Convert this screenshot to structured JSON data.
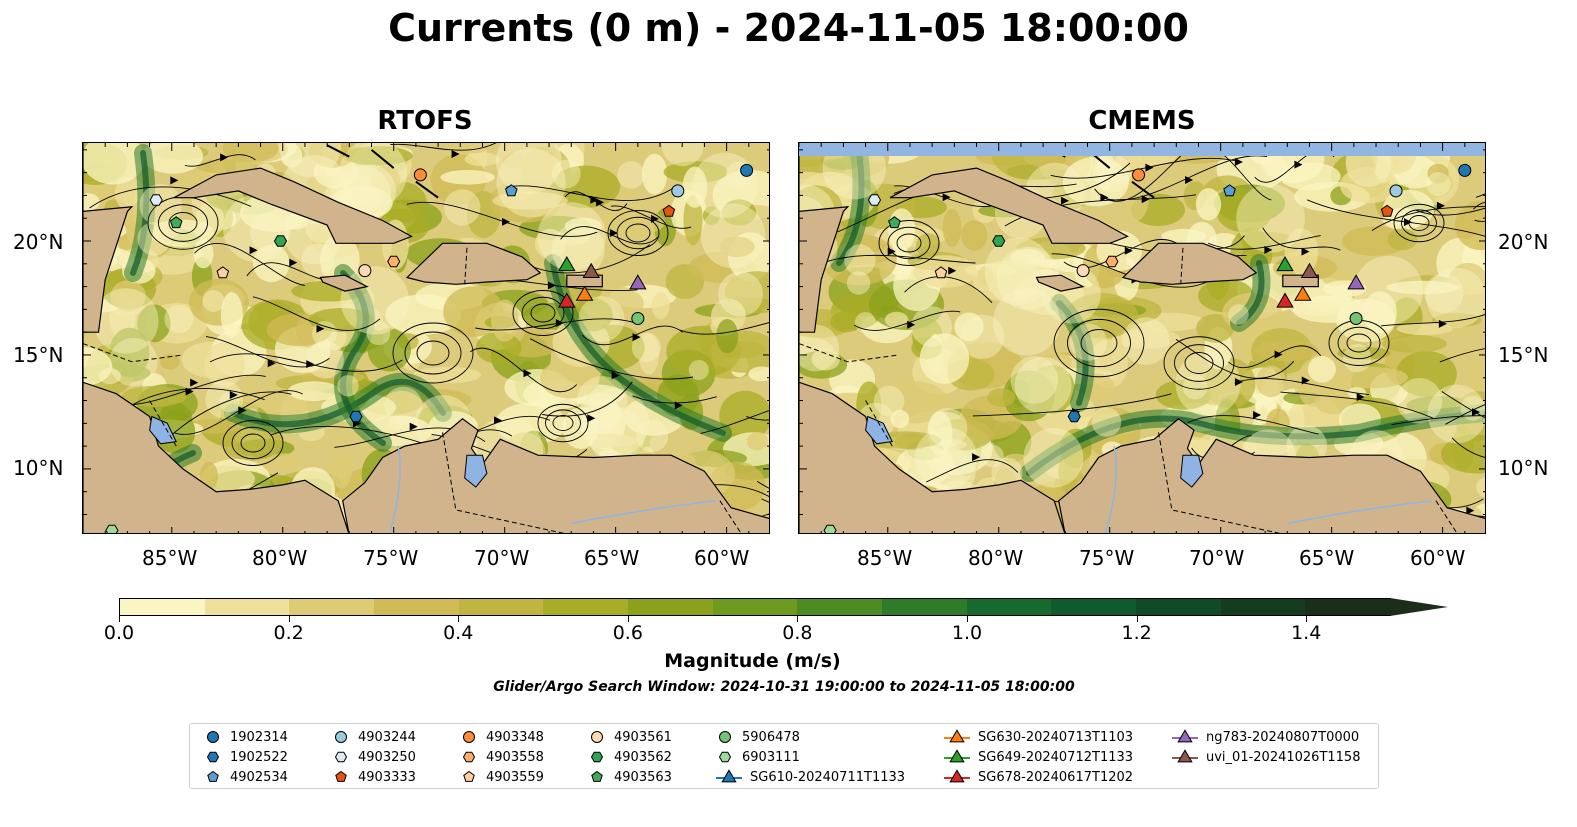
{
  "title": "Currents (0 m) - 2024-11-05 18:00:00",
  "panels": [
    {
      "title": "RTOFS"
    },
    {
      "title": "CMEMS"
    }
  ],
  "axes": {
    "lon_labels": [
      "85°W",
      "80°W",
      "75°W",
      "70°W",
      "65°W",
      "60°W"
    ],
    "lat_labels": [
      "20°N",
      "15°N",
      "10°N"
    ],
    "lon_range": [
      -89,
      -58
    ],
    "lat_range": [
      7.1,
      24.3
    ]
  },
  "colorbar": {
    "label": "Magnitude (m/s)",
    "tick_labels": [
      "0.0",
      "0.2",
      "0.4",
      "0.6",
      "0.8",
      "1.0",
      "1.2",
      "1.4"
    ],
    "ticks": [
      0,
      0.2,
      0.4,
      0.6,
      0.8,
      1.0,
      1.2,
      1.4
    ],
    "range": [
      0,
      1.5
    ],
    "extend": "max",
    "colors": [
      "#fbf5c3",
      "#efe09b",
      "#decb76",
      "#d0bb56",
      "#bfb540",
      "#a9ac26",
      "#8ba11b",
      "#6e9a20",
      "#4f8b25",
      "#2e7c2a",
      "#16692f",
      "#115a2c",
      "#0f4b25",
      "#163c1f",
      "#1a2e19"
    ]
  },
  "search_window": "Glider/Argo Search Window: 2024-10-31 19:00:00 to 2024-11-05 18:00:00",
  "legend": [
    {
      "label": "1902314",
      "marker": "circle",
      "color": "#1f77b4"
    },
    {
      "label": "1902522",
      "marker": "hexagon",
      "color": "#1f77b4"
    },
    {
      "label": "4902534",
      "marker": "pentagon",
      "color": "#5a9fd4"
    },
    {
      "label": "4903244",
      "marker": "circle",
      "color": "#9ecae1"
    },
    {
      "label": "4903250",
      "marker": "hexagon",
      "color": "#deebf7"
    },
    {
      "label": "4903333",
      "marker": "pentagon",
      "color": "#e6550d"
    },
    {
      "label": "4903348",
      "marker": "circle",
      "color": "#fd8d3c"
    },
    {
      "label": "4903558",
      "marker": "hexagon",
      "color": "#fdae6b"
    },
    {
      "label": "4903559",
      "marker": "pentagon",
      "color": "#fdd0a2"
    },
    {
      "label": "4903561",
      "marker": "circle",
      "color": "#fdd9b8"
    },
    {
      "label": "4903562",
      "marker": "hexagon",
      "color": "#31a354"
    },
    {
      "label": "4903563",
      "marker": "pentagon",
      "color": "#41ab5d"
    },
    {
      "label": "5906478",
      "marker": "circle",
      "color": "#74c476"
    },
    {
      "label": "6903111",
      "marker": "hexagon",
      "color": "#a1d99b"
    },
    {
      "label": "SG610-20240711T1133",
      "marker": "triangle",
      "color": "#1f77b4"
    },
    {
      "label": "SG630-20240713T1103",
      "marker": "triangle",
      "color": "#ff7f0e"
    },
    {
      "label": "SG649-20240712T1133",
      "marker": "triangle",
      "color": "#2ca02c"
    },
    {
      "label": "SG678-20240617T1202",
      "marker": "triangle",
      "color": "#d62728"
    },
    {
      "label": "ng783-20240807T0000",
      "marker": "triangle",
      "color": "#9467bd"
    },
    {
      "label": "uvi_01-20241026T1158",
      "marker": "triangle",
      "color": "#8c564b"
    }
  ],
  "platforms": [
    {
      "id": "1902314",
      "lon": -59.1,
      "lat": 23.1
    },
    {
      "id": "4903244",
      "lon": -62.2,
      "lat": 22.2
    },
    {
      "id": "4903333",
      "lon": -62.6,
      "lat": 21.3
    },
    {
      "id": "4902534",
      "lon": -69.7,
      "lat": 22.2
    },
    {
      "id": "4903348",
      "lon": -73.8,
      "lat": 22.9
    },
    {
      "id": "4903250",
      "lon": -85.7,
      "lat": 21.8
    },
    {
      "id": "4903563",
      "lon": -84.8,
      "lat": 20.8
    },
    {
      "id": "4903562",
      "lon": -80.1,
      "lat": 20.0
    },
    {
      "id": "4903559",
      "lon": -82.7,
      "lat": 18.6
    },
    {
      "id": "4903561",
      "lon": -76.3,
      "lat": 18.7
    },
    {
      "id": "4903558",
      "lon": -75.0,
      "lat": 19.1
    },
    {
      "id": "5906478",
      "lon": -64.0,
      "lat": 16.6
    },
    {
      "id": "1902522",
      "lon": -76.7,
      "lat": 12.3
    },
    {
      "id": "6903111",
      "lon": -87.7,
      "lat": 7.3
    },
    {
      "id": "SG649-20240712T1133",
      "lon": -67.2,
      "lat": 18.9
    },
    {
      "id": "uvi_01-20241026T1158",
      "lon": -66.1,
      "lat": 18.6
    },
    {
      "id": "ng783-20240807T0000",
      "lon": -64.0,
      "lat": 18.1
    },
    {
      "id": "SG630-20240713T1103",
      "lon": -66.4,
      "lat": 17.6
    },
    {
      "id": "SG678-20240617T1202",
      "lon": -67.2,
      "lat": 17.3
    }
  ]
}
